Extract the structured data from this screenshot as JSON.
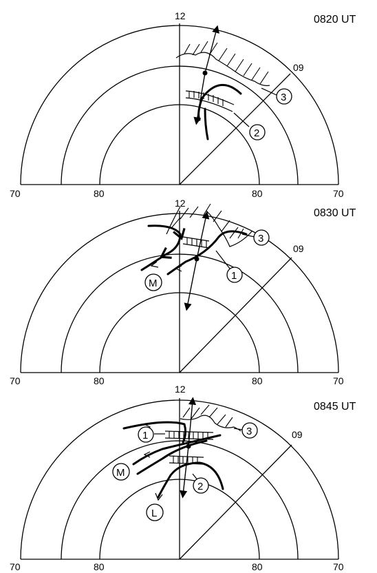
{
  "panels": [
    {
      "time": "0820 UT",
      "mlt_top": "12",
      "mlt_diag": "09",
      "lat_left": "70",
      "lat_mid_left": "80",
      "lat_mid_right": "80",
      "lat_right": "70",
      "labels": [
        "3",
        "2"
      ]
    },
    {
      "time": "0830 UT",
      "mlt_top": "12",
      "mlt_diag": "09",
      "lat_left": "70",
      "lat_mid_left": "80",
      "lat_mid_right": "80",
      "lat_right": "70",
      "labels": [
        "3",
        "1",
        "M"
      ]
    },
    {
      "time": "0845 UT",
      "mlt_top": "12",
      "mlt_diag": "09",
      "lat_left": "70",
      "lat_mid_left": "80",
      "lat_mid_right": "80",
      "lat_right": "70",
      "labels": [
        "3",
        "1",
        "M",
        "2",
        "L"
      ]
    }
  ]
}
